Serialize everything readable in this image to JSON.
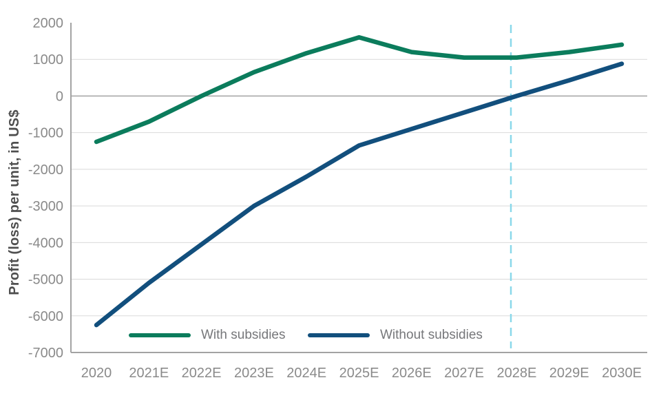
{
  "chart_data": {
    "type": "line",
    "title": "",
    "xlabel": "",
    "ylabel": "Profit (loss) per unit, in US$",
    "categories": [
      "2020",
      "2021E",
      "2022E",
      "2023E",
      "2024E",
      "2025E",
      "2026E",
      "2027E",
      "2028E",
      "2029E",
      "2030E"
    ],
    "series": [
      {
        "name": "With subsidies",
        "color": "#0b7c5c",
        "values": [
          -1250,
          -700,
          0,
          650,
          1170,
          1600,
          1200,
          1050,
          1050,
          1200,
          1400
        ]
      },
      {
        "name": "Without subsidies",
        "color": "#124f7d",
        "values": [
          -6250,
          -5100,
          -4050,
          -3000,
          -2200,
          -1350,
          -900,
          -450,
          0,
          430,
          880
        ]
      }
    ],
    "ylim": [
      -7000,
      2000
    ],
    "ytick_step": 1000,
    "yticks": [
      "2000",
      "1000",
      "0",
      "-1000",
      "-2000",
      "-3000",
      "-4000",
      "-5000",
      "-6000",
      "-7000"
    ],
    "grid": "horizontal gridlines on, darker line at 0, no vertical gridlines",
    "legend_position": "inside plot, bottom center",
    "annotations": [
      {
        "type": "vline",
        "near_category": "2028E",
        "at_index": 7.89,
        "style": "dashed",
        "color": "#8ad8ea"
      }
    ]
  },
  "colors": {
    "background": "#ffffff",
    "gridline": "#d9d9d9",
    "zero_line": "#9b9b9b",
    "axis_line": "#a3a3a3",
    "tick_label": "#8a8a8a",
    "legend_text": "#76777a",
    "axis_title": "#4f4f4f"
  }
}
